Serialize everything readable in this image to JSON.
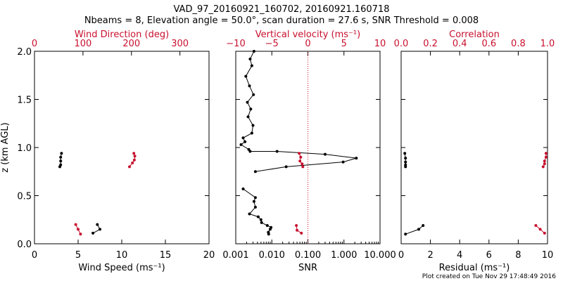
{
  "colors": {
    "black": "#000000",
    "red": "#c8102e"
  },
  "titles": {
    "line1": "VAD_97_20160921_160702, 20160921.160718",
    "line2": "Nbeams = 8, Elevation angle = 50.0°, scan duration = 27.6 s, SNR Threshold = 0.008"
  },
  "footer": "Plot created on Tue Nov 29 17:48:49 2016",
  "ylabel": "z (km AGL)",
  "chart_data": [
    {
      "panel": "wind",
      "type": "line",
      "ylabel": "z (km AGL)",
      "ylim": [
        0,
        2
      ],
      "yticks": [
        "0.0",
        "0.5",
        "1.0",
        "1.5",
        "2.0"
      ],
      "bottom_axis": {
        "label": "Wind Speed (ms⁻¹)",
        "range": [
          0,
          20
        ],
        "ticks": [
          "0",
          "5",
          "10",
          "15",
          "20"
        ]
      },
      "top_axis": {
        "label": "Wind Direction (deg)",
        "range": [
          0,
          360
        ],
        "ticks": [
          "0",
          "100",
          "200",
          "300"
        ]
      },
      "series": [
        {
          "name": "Wind Speed",
          "axis": "bottom",
          "color": "black",
          "points": [
            {
              "segment": [
                [
                  3.1,
                  0.94
                ],
                [
                  3.0,
                  0.9
                ],
                [
                  3.0,
                  0.86
                ],
                [
                  3.0,
                  0.82
                ],
                [
                  2.9,
                  0.8
                ]
              ]
            },
            {
              "segment": [
                [
                  7.2,
                  0.2
                ],
                [
                  7.5,
                  0.15
                ],
                [
                  6.7,
                  0.11
                ]
              ]
            }
          ]
        },
        {
          "name": "Wind Direction",
          "axis": "top",
          "color": "red",
          "points": [
            {
              "segment": [
                [
                  205,
                  0.94
                ],
                [
                  207,
                  0.91
                ],
                [
                  206,
                  0.87
                ],
                [
                  202,
                  0.84
                ],
                [
                  196,
                  0.8
                ]
              ]
            },
            {
              "segment": [
                [
                  85,
                  0.2
                ],
                [
                  90,
                  0.15
                ],
                [
                  95,
                  0.1
                ]
              ]
            }
          ]
        }
      ]
    },
    {
      "panel": "snr",
      "type": "line",
      "ylim": [
        0,
        2
      ],
      "bottom_axis": {
        "label": "SNR",
        "scale": "log",
        "range": [
          0.001,
          10
        ],
        "ticks": [
          "0.001",
          "0.010",
          "0.100",
          "1.000",
          "10.000"
        ]
      },
      "top_axis": {
        "label": "Vertical velocity (ms⁻¹)",
        "range": [
          -10,
          10
        ],
        "ticks": [
          "−10",
          "−5",
          "0",
          "5",
          "10"
        ]
      },
      "reference_line": {
        "axis": "top",
        "value": 0,
        "style": "dotted",
        "color": "red"
      },
      "series": [
        {
          "name": "SNR",
          "axis": "bottom",
          "color": "black",
          "points": [
            {
              "segment": [
                [
                  0.0032,
                  2.0
                ],
                [
                  0.0025,
                  1.92
                ],
                [
                  0.0028,
                  1.85
                ],
                [
                  0.0019,
                  1.74
                ],
                [
                  0.0024,
                  1.64
                ],
                [
                  0.0031,
                  1.55
                ],
                [
                  0.0021,
                  1.47
                ],
                [
                  0.0026,
                  1.4
                ],
                [
                  0.0022,
                  1.32
                ],
                [
                  0.003,
                  1.23
                ],
                [
                  0.0028,
                  1.15
                ],
                [
                  0.0016,
                  1.1
                ],
                [
                  0.0018,
                  1.06
                ],
                [
                  0.0014,
                  1.03
                ],
                [
                  0.0023,
                  0.98
                ],
                [
                  0.0025,
                  0.96
                ],
                [
                  0.014,
                  0.96
                ],
                [
                  0.3,
                  0.93
                ],
                [
                  2.2,
                  0.89
                ],
                [
                  0.95,
                  0.85
                ],
                [
                  0.025,
                  0.8
                ],
                [
                  0.0035,
                  0.75
                ]
              ]
            },
            {
              "segment": [
                [
                  0.0016,
                  0.57
                ],
                [
                  0.0035,
                  0.48
                ],
                [
                  0.0032,
                  0.44
                ],
                [
                  0.0035,
                  0.38
                ],
                [
                  0.0024,
                  0.31
                ],
                [
                  0.0042,
                  0.28
                ],
                [
                  0.005,
                  0.25
                ],
                [
                  0.0052,
                  0.22
                ],
                [
                  0.0075,
                  0.19
                ],
                [
                  0.0095,
                  0.17
                ],
                [
                  0.009,
                  0.15
                ],
                [
                  0.008,
                  0.12
                ],
                [
                  0.0082,
                  0.1
                ]
              ]
            }
          ]
        },
        {
          "name": "Vertical velocity",
          "axis": "top",
          "color": "red",
          "points": [
            {
              "segment": [
                [
                  -1.2,
                  0.94
                ],
                [
                  -1.0,
                  0.9
                ],
                [
                  -1.1,
                  0.86
                ],
                [
                  -0.8,
                  0.83
                ],
                [
                  -0.7,
                  0.8
                ]
              ]
            },
            {
              "segment": [
                [
                  -1.6,
                  0.19
                ],
                [
                  -1.5,
                  0.14
                ],
                [
                  -0.9,
                  0.11
                ]
              ]
            }
          ]
        }
      ]
    },
    {
      "panel": "correlation",
      "type": "line",
      "ylim": [
        0,
        2
      ],
      "bottom_axis": {
        "label": "Residual (ms⁻¹)",
        "range": [
          0,
          10
        ],
        "ticks": [
          "0",
          "2",
          "4",
          "6",
          "8",
          "10"
        ]
      },
      "top_axis": {
        "label": "Correlation",
        "range": [
          0,
          1
        ],
        "ticks": [
          "0.0",
          "0.2",
          "0.4",
          "0.6",
          "0.8",
          "1.0"
        ]
      },
      "series": [
        {
          "name": "Residual",
          "axis": "bottom",
          "color": "black",
          "points": [
            {
              "segment": [
                [
                  0.25,
                  0.94
                ],
                [
                  0.3,
                  0.89
                ],
                [
                  0.3,
                  0.85
                ],
                [
                  0.3,
                  0.82
                ],
                [
                  0.3,
                  0.8
                ]
              ]
            },
            {
              "segment": [
                [
                  1.5,
                  0.19
                ],
                [
                  1.2,
                  0.15
                ],
                [
                  0.3,
                  0.1
                ]
              ]
            }
          ]
        },
        {
          "name": "Correlation",
          "axis": "top",
          "color": "red",
          "points": [
            {
              "segment": [
                [
                  0.99,
                  0.94
                ],
                [
                  0.99,
                  0.9
                ],
                [
                  0.98,
                  0.86
                ],
                [
                  0.98,
                  0.83
                ],
                [
                  0.97,
                  0.8
                ]
              ]
            },
            {
              "segment": [
                [
                  0.92,
                  0.19
                ],
                [
                  0.95,
                  0.15
                ],
                [
                  0.98,
                  0.11
                ]
              ]
            }
          ]
        }
      ]
    }
  ]
}
